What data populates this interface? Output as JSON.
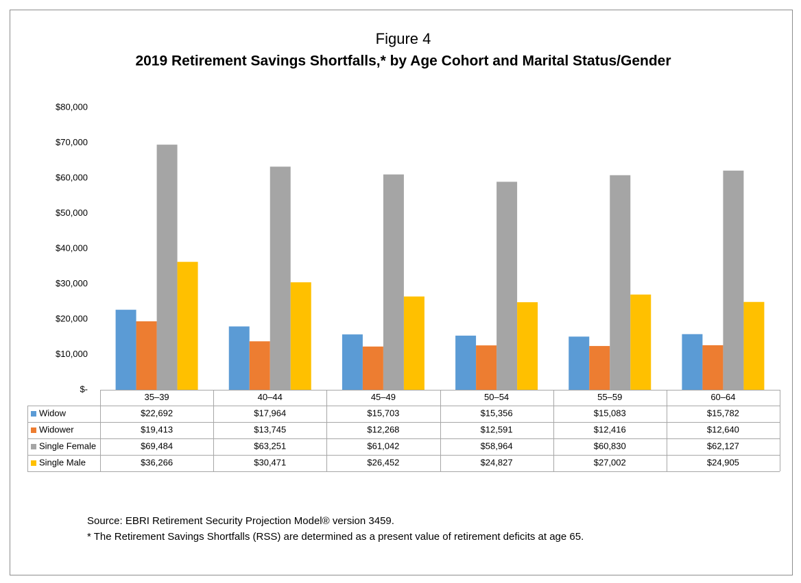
{
  "chart_data": {
    "type": "bar",
    "title": "Figure 4",
    "subtitle": "2019 Retirement Savings Shortfalls,* by Age Cohort and Marital Status/Gender",
    "categories": [
      "35–39",
      "40–44",
      "45–49",
      "50–54",
      "55–59",
      "60–64"
    ],
    "series": [
      {
        "name": "Widow",
        "color": "#5b9bd5",
        "values": [
          22692,
          17964,
          15703,
          15356,
          15083,
          15782
        ],
        "value_labels": [
          "$22,692",
          "$17,964",
          "$15,703",
          "$15,356",
          "$15,083",
          "$15,782"
        ]
      },
      {
        "name": "Widower",
        "color": "#ed7d31",
        "values": [
          19413,
          13745,
          12268,
          12591,
          12416,
          12640
        ],
        "value_labels": [
          "$19,413",
          "$13,745",
          "$12,268",
          "$12,591",
          "$12,416",
          "$12,640"
        ]
      },
      {
        "name": "Single Female",
        "color": "#a5a5a5",
        "values": [
          69484,
          63251,
          61042,
          58964,
          60830,
          62127
        ],
        "value_labels": [
          "$69,484",
          "$63,251",
          "$61,042",
          "$58,964",
          "$60,830",
          "$62,127"
        ]
      },
      {
        "name": "Single Male",
        "color": "#ffc000",
        "values": [
          36266,
          30471,
          26452,
          24827,
          27002,
          24905
        ],
        "value_labels": [
          "$36,266",
          "$30,471",
          "$26,452",
          "$24,827",
          "$27,002",
          "$24,905"
        ]
      }
    ],
    "ylim": [
      0,
      80000
    ],
    "yticks": [
      {
        "value": 0,
        "label": "$-"
      },
      {
        "value": 10000,
        "label": "$10,000"
      },
      {
        "value": 20000,
        "label": "$20,000"
      },
      {
        "value": 30000,
        "label": "$30,000"
      },
      {
        "value": 40000,
        "label": "$40,000"
      },
      {
        "value": 50000,
        "label": "$50,000"
      },
      {
        "value": 60000,
        "label": "$60,000"
      },
      {
        "value": 70000,
        "label": "$70,000"
      },
      {
        "value": 80000,
        "label": "$80,000"
      }
    ],
    "grid": false,
    "notes": [
      "Source: EBRI Retirement Security Projection Model® version 3459.",
      "* The Retirement Savings Shortfalls (RSS) are determined as a present value of retirement deficits at age 65."
    ]
  }
}
